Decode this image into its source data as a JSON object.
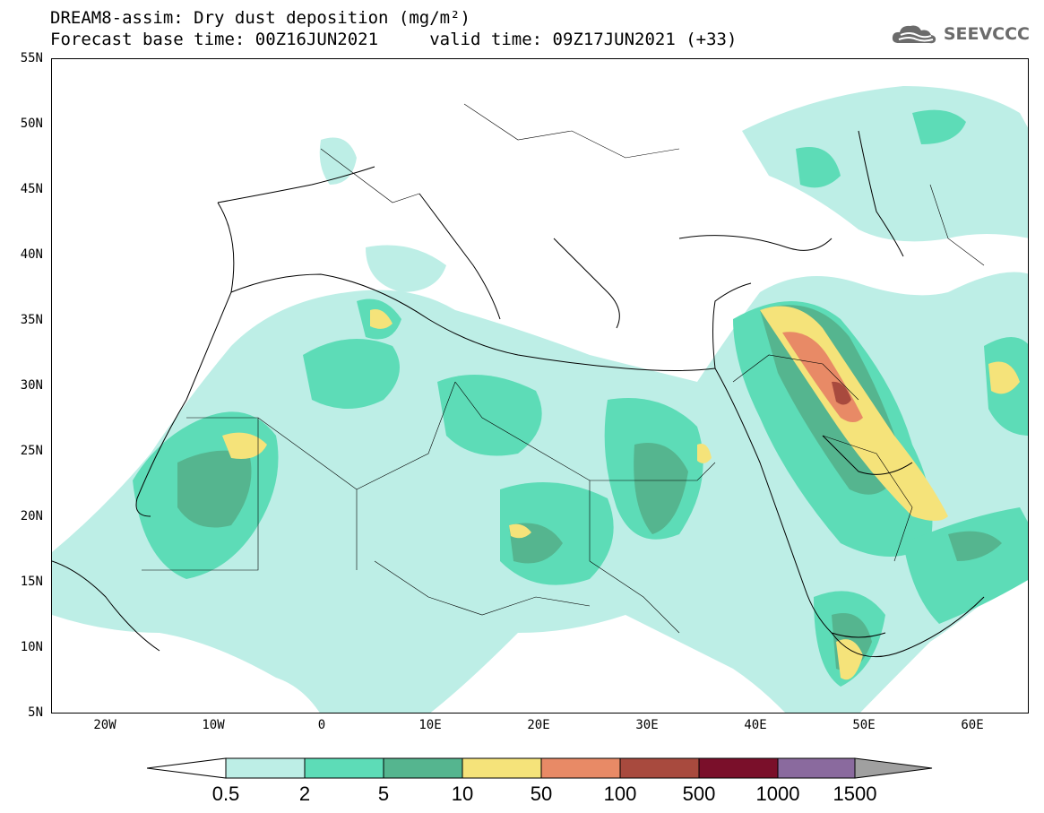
{
  "header": {
    "title_line1": "DREAM8-assim: Dry dust deposition (mg/m²)",
    "title_line2": "Forecast base time: 00Z16JUN2021     valid time: 09Z17JUN2021 (+33)"
  },
  "logo": {
    "text": "SEEVCCC",
    "icon": "cloud-logo-icon"
  },
  "map": {
    "lon_range": [
      -25,
      65
    ],
    "lat_range": [
      5,
      55
    ],
    "lat_labels": [
      "55N",
      "50N",
      "45N",
      "40N",
      "35N",
      "30N",
      "25N",
      "20N",
      "15N",
      "10N",
      "5N"
    ],
    "lon_labels": [
      "20W",
      "10W",
      "0",
      "10E",
      "20E",
      "30E",
      "40E",
      "50E",
      "60E"
    ]
  },
  "colorbar": {
    "labels": [
      "0.5",
      "2",
      "5",
      "10",
      "50",
      "100",
      "500",
      "1000",
      "1500"
    ],
    "colors": [
      "#ffffff",
      "#bdeee6",
      "#5ddcb7",
      "#55b58f",
      "#f5e37a",
      "#e88a66",
      "#a84a3e",
      "#7a0f2a",
      "#8a6a9e",
      "#a0a0a0"
    ]
  },
  "chart_data": {
    "type": "heatmap",
    "title": "DREAM8-assim: Dry dust deposition (mg/m²)",
    "units": "mg/m²",
    "levels": [
      0.5,
      2,
      5,
      10,
      50,
      100,
      500,
      1000,
      1500
    ],
    "base_time": "00Z16JUN2021",
    "valid_time": "09Z17JUN2021",
    "forecast_hour": 33,
    "lon_range": [
      -25,
      65
    ],
    "lat_range": [
      5,
      55
    ]
  }
}
